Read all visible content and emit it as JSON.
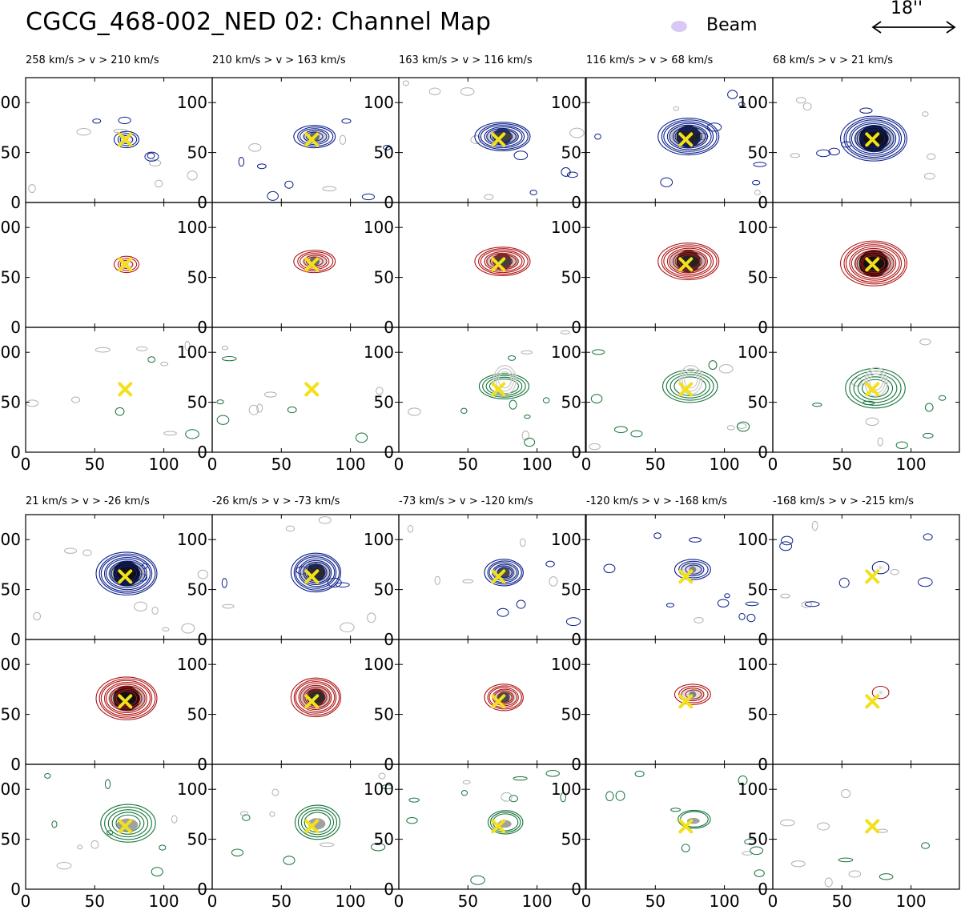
{
  "title": "CGCG_468-002_NED 02: Channel Map",
  "beam_label": "Beam",
  "scale_label": "18''",
  "colors": {
    "blue": "#0b1f8a",
    "red": "#b01515",
    "green": "#16733a",
    "gray": "#b0b0b0",
    "marker": "#f2e11a",
    "beam": "#d9c8f5"
  },
  "chart_data": {
    "type": "contour",
    "description_rows": [
      "blue",
      "red",
      "green"
    ],
    "xlim": [
      0,
      135
    ],
    "ylim": [
      0,
      125
    ],
    "xticks": [
      0,
      50,
      100
    ],
    "yticks": [
      0,
      50,
      100
    ],
    "marker": {
      "x": 72,
      "y": 63,
      "symbol": "x"
    },
    "channels": [
      {
        "label": "258 km/s > v > 210 km/s",
        "amp": 0.3,
        "cx": 73,
        "cy": 63,
        "sx": 9,
        "sy": 8,
        "green": "none"
      },
      {
        "label": "210 km/s > v > 163 km/s",
        "amp": 0.55,
        "cx": 74,
        "cy": 66,
        "sx": 15,
        "sy": 11,
        "green": "faint"
      },
      {
        "label": "163 km/s > v > 116 km/s",
        "amp": 0.75,
        "cx": 75,
        "cy": 66,
        "sx": 20,
        "sy": 14,
        "green": "ring"
      },
      {
        "label": "116 km/s > v > 68 km/s",
        "amp": 0.9,
        "cx": 74,
        "cy": 66,
        "sx": 22,
        "sy": 18,
        "green": "ring"
      },
      {
        "label": "68 km/s > v > 21 km/s",
        "amp": 1.0,
        "cx": 73,
        "cy": 64,
        "sx": 24,
        "sy": 22,
        "green": "ring"
      },
      {
        "label": "21 km/s > v > -26 km/s",
        "amp": 1.0,
        "cx": 73,
        "cy": 66,
        "sx": 22,
        "sy": 21,
        "green": "blob"
      },
      {
        "label": "-26 km/s > v > -73 km/s",
        "amp": 0.85,
        "cx": 75,
        "cy": 67,
        "sx": 18,
        "sy": 19,
        "green": "blob"
      },
      {
        "label": "-73 km/s > v > -120 km/s",
        "amp": 0.7,
        "cx": 76,
        "cy": 67,
        "sx": 14,
        "sy": 13,
        "green": "blob"
      },
      {
        "label": "-120 km/s > v > -168 km/s",
        "amp": 0.45,
        "cx": 77,
        "cy": 70,
        "sx": 13,
        "sy": 10,
        "green": "blob"
      },
      {
        "label": "-168 km/s > v > -215 km/s",
        "amp": 0.12,
        "cx": 78,
        "cy": 72,
        "sx": 6,
        "sy": 6,
        "green": "faint"
      }
    ]
  }
}
